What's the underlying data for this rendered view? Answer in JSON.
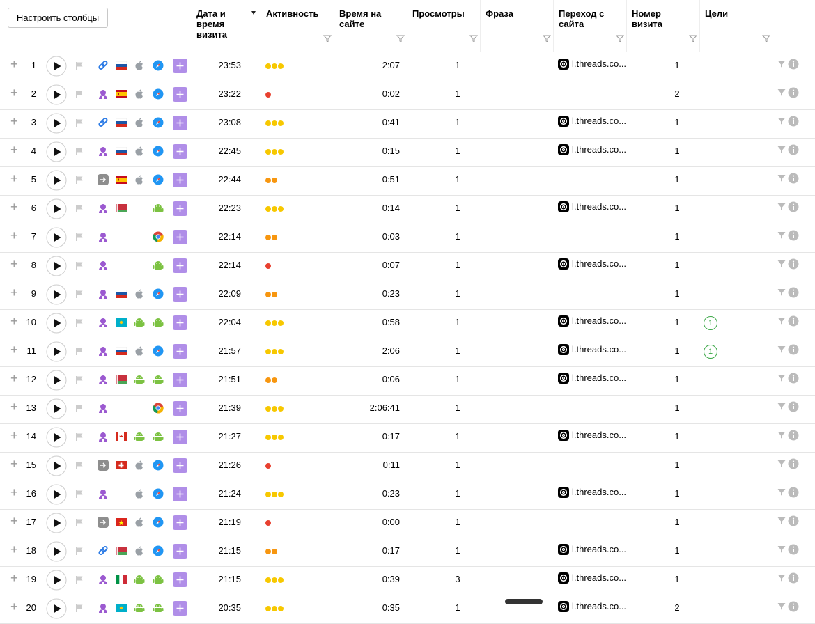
{
  "toolbar": {
    "button": "Настроить столбцы"
  },
  "headers": [
    "Дата и время визита",
    "Активность",
    "Время на сайте",
    "Просмотры",
    "Фраза",
    "Переход с сайта",
    "Номер визита",
    "Цели"
  ],
  "activity_colors": [
    "#e8402f",
    "#f7960f",
    "#f7c800"
  ],
  "rows": [
    {
      "n": 1,
      "time": "23:53",
      "activity": 3,
      "duration": "2:07",
      "views": 1,
      "referrer": "l.threads.co...",
      "visit": 1
    },
    {
      "n": 2,
      "time": "23:22",
      "activity": 1,
      "duration": "0:02",
      "views": 1,
      "visit": 2
    },
    {
      "n": 3,
      "time": "23:08",
      "activity": 3,
      "duration": "0:41",
      "views": 1,
      "referrer": "l.threads.co...",
      "visit": 1
    },
    {
      "n": 4,
      "time": "22:45",
      "activity": 3,
      "duration": "0:15",
      "views": 1,
      "referrer": "l.threads.co...",
      "visit": 1
    },
    {
      "n": 5,
      "time": "22:44",
      "activity": 2,
      "duration": "0:51",
      "views": 1,
      "visit": 1
    },
    {
      "n": 6,
      "time": "22:23",
      "activity": 3,
      "duration": "0:14",
      "views": 1,
      "referrer": "l.threads.co...",
      "visit": 1
    },
    {
      "n": 7,
      "time": "22:14",
      "activity": 2,
      "duration": "0:03",
      "views": 1,
      "visit": 1
    },
    {
      "n": 8,
      "time": "22:14",
      "activity": 1,
      "duration": "0:07",
      "views": 1,
      "referrer": "l.threads.co...",
      "visit": 1
    },
    {
      "n": 9,
      "time": "22:09",
      "activity": 2,
      "duration": "0:23",
      "views": 1,
      "visit": 1
    },
    {
      "n": 10,
      "time": "22:04",
      "activity": 3,
      "duration": "0:58",
      "views": 1,
      "referrer": "l.threads.co...",
      "visit": 1,
      "goals": 1
    },
    {
      "n": 11,
      "time": "21:57",
      "activity": 3,
      "duration": "2:06",
      "views": 1,
      "referrer": "l.threads.co...",
      "visit": 1,
      "goals": 1
    },
    {
      "n": 12,
      "time": "21:51",
      "activity": 2,
      "duration": "0:06",
      "views": 1,
      "referrer": "l.threads.co...",
      "visit": 1
    },
    {
      "n": 13,
      "time": "21:39",
      "activity": 3,
      "duration": "2:06:41",
      "views": 1,
      "visit": 1
    },
    {
      "n": 14,
      "time": "21:27",
      "activity": 3,
      "duration": "0:17",
      "views": 1,
      "referrer": "l.threads.co...",
      "visit": 1
    },
    {
      "n": 15,
      "time": "21:26",
      "activity": 1,
      "duration": "0:11",
      "views": 1,
      "visit": 1
    },
    {
      "n": 16,
      "time": "21:24",
      "activity": 3,
      "duration": "0:23",
      "views": 1,
      "referrer": "l.threads.co...",
      "visit": 1
    },
    {
      "n": 17,
      "time": "21:19",
      "activity": 1,
      "duration": "0:00",
      "views": 1,
      "visit": 1
    },
    {
      "n": 18,
      "time": "21:15",
      "activity": 2,
      "duration": "0:17",
      "views": 1,
      "referrer": "l.threads.co...",
      "visit": 1
    },
    {
      "n": 19,
      "time": "21:15",
      "activity": 3,
      "duration": "0:39",
      "views": 3,
      "referrer": "l.threads.co...",
      "visit": 1
    },
    {
      "n": 20,
      "time": "20:35",
      "activity": 3,
      "duration": "0:35",
      "views": 1,
      "referrer": "l.threads.co...",
      "visit": 2
    }
  ]
}
